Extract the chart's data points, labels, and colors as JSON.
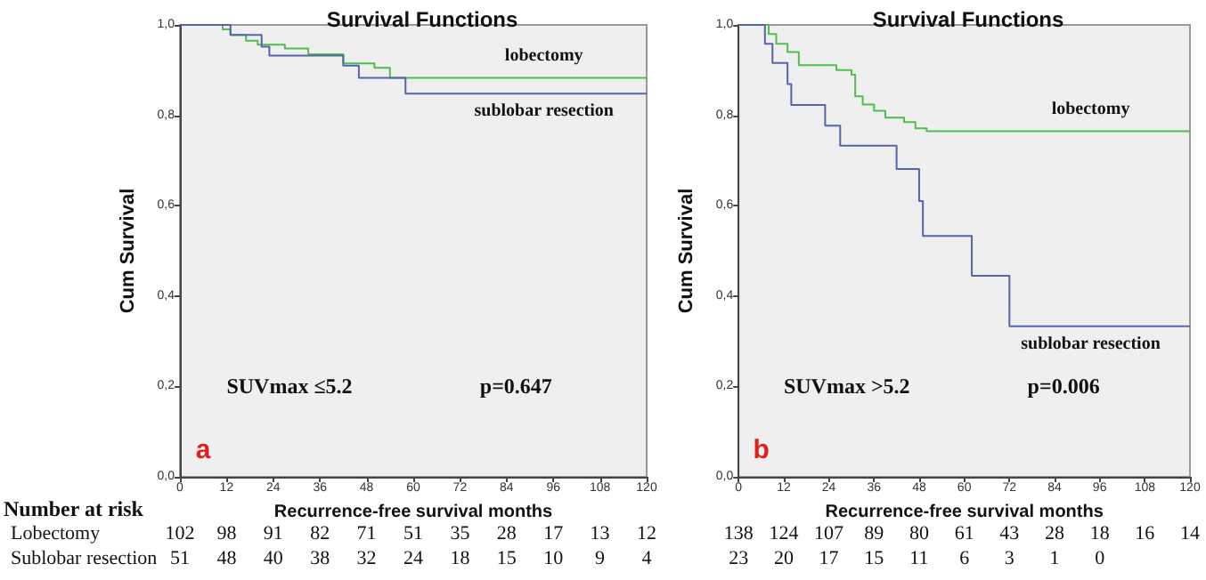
{
  "chart_data": [
    {
      "type": "step",
      "title": "Survival Functions",
      "xlabel": "Recurrence-free survival months",
      "ylabel": "Cum Survival",
      "xlim": [
        0,
        120
      ],
      "xticks": [
        0,
        12,
        24,
        36,
        48,
        60,
        72,
        84,
        96,
        108,
        120
      ],
      "ylim": [
        0,
        1
      ],
      "yticks": [
        {
          "value": 0,
          "label": "0,0"
        },
        {
          "value": 0.2,
          "label": "0,2"
        },
        {
          "value": 0.4,
          "label": "0,4"
        },
        {
          "value": 0.6,
          "label": "0,6"
        },
        {
          "value": 0.8,
          "label": "0,8"
        },
        {
          "value": 1,
          "label": "1,0"
        }
      ],
      "grid": false,
      "legend": false,
      "series": [
        {
          "name": "lobectomy",
          "color": "#4cbf4c",
          "x": [
            0,
            11,
            13,
            17,
            20,
            27,
            33,
            42,
            50,
            54,
            120
          ],
          "values": [
            1,
            0.99,
            0.978,
            0.965,
            0.956,
            0.948,
            0.935,
            0.915,
            0.905,
            0.883,
            0.883
          ]
        },
        {
          "name": "sublobar resection",
          "color": "#5664a8",
          "x": [
            0,
            13,
            21,
            23,
            42,
            46,
            58,
            120
          ],
          "values": [
            1,
            0.978,
            0.952,
            0.932,
            0.91,
            0.883,
            0.848,
            0.848
          ]
        }
      ],
      "annotations": [
        "SUVmax ≤5.2",
        "p=0.647",
        "a",
        "Number at risk",
        "Lobectomy",
        "Sublobar resection",
        "102",
        "98",
        "91",
        "82",
        "71",
        "51",
        "35",
        "28",
        "17",
        "13",
        "12",
        "51",
        "48",
        "40",
        "38",
        "32",
        "24",
        "18",
        "15",
        "10",
        "9",
        "4"
      ]
    },
    {
      "type": "step",
      "title": "Survival Functions",
      "xlabel": "Recurrence-free survival months",
      "ylabel": "Cum Survival",
      "xlim": [
        0,
        120
      ],
      "xticks": [
        0,
        12,
        24,
        36,
        48,
        60,
        72,
        84,
        96,
        108,
        120
      ],
      "ylim": [
        0,
        1
      ],
      "yticks": [
        {
          "value": 0,
          "label": "0,0"
        },
        {
          "value": 0.2,
          "label": "0,2"
        },
        {
          "value": 0.4,
          "label": "0,4"
        },
        {
          "value": 0.6,
          "label": "0,6"
        },
        {
          "value": 0.8,
          "label": "0,8"
        },
        {
          "value": 1,
          "label": "1,0"
        }
      ],
      "grid": false,
      "legend": false,
      "series": [
        {
          "name": "lobectomy",
          "color": "#4cbf4c",
          "x": [
            0,
            8,
            10,
            13,
            16,
            26,
            30,
            31,
            33,
            36,
            39,
            44,
            47,
            50,
            120
          ],
          "values": [
            1,
            0.98,
            0.958,
            0.94,
            0.911,
            0.9,
            0.89,
            0.842,
            0.824,
            0.81,
            0.795,
            0.785,
            0.771,
            0.765,
            0.765
          ]
        },
        {
          "name": "sublobar resection",
          "color": "#5664a8",
          "x": [
            0,
            7,
            9,
            13,
            14,
            23,
            27,
            42,
            48,
            49,
            62,
            72,
            120
          ],
          "values": [
            1,
            0.958,
            0.916,
            0.869,
            0.823,
            0.777,
            0.733,
            0.681,
            0.61,
            0.533,
            0.445,
            0.333,
            0.333
          ]
        }
      ],
      "annotations": [
        "SUVmax >5.2",
        "p=0.006",
        "b",
        "138",
        "124",
        "107",
        "89",
        "80",
        "61",
        "43",
        "28",
        "18",
        "16",
        "14",
        "23",
        "20",
        "17",
        "15",
        "11",
        "6",
        "3",
        "1",
        "0"
      ]
    }
  ]
}
